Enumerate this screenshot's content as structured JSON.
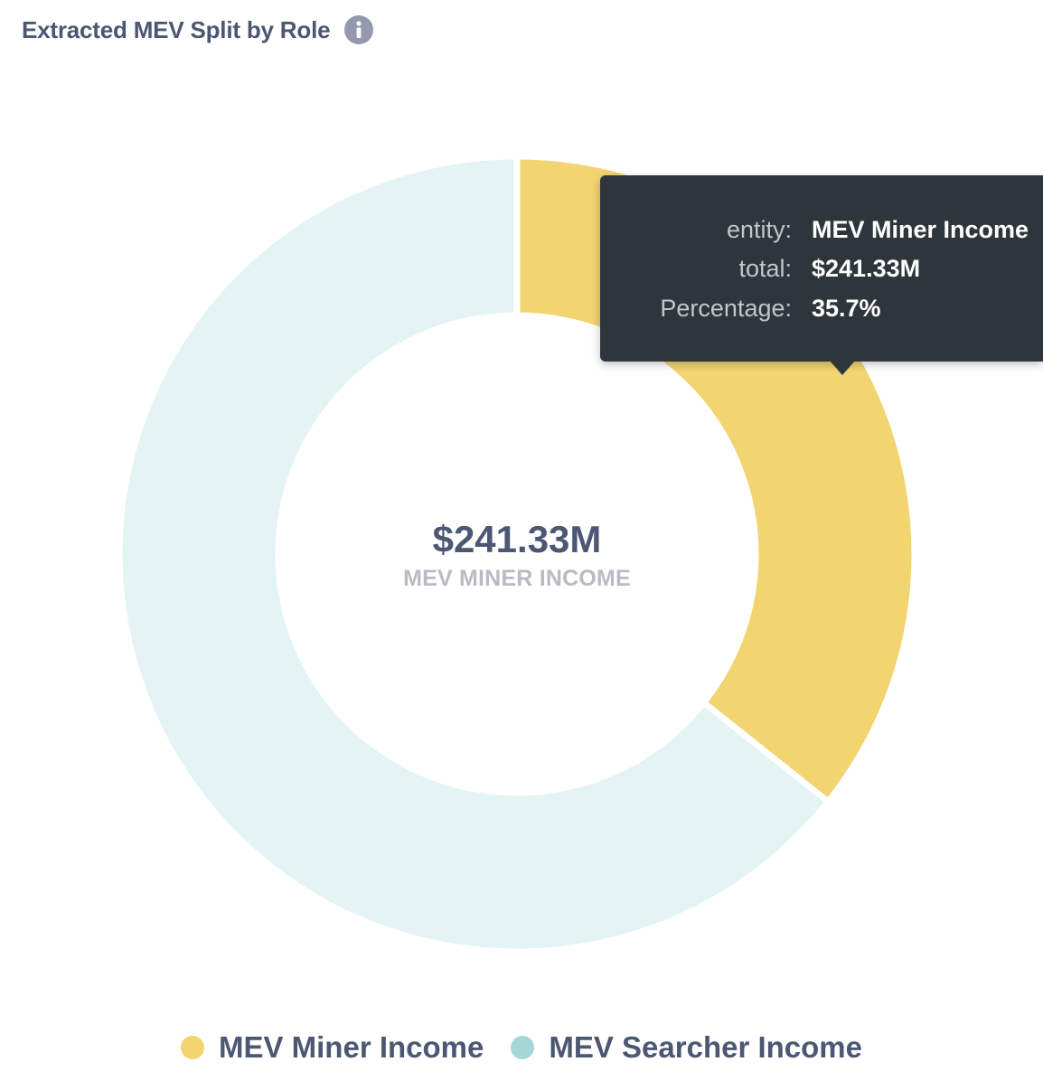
{
  "card": {
    "title": "Extracted MEV Split by Role",
    "info_icon": "info-circle-icon"
  },
  "chart_data": {
    "type": "pie",
    "variant": "donut",
    "series": [
      {
        "name": "MEV Miner Income",
        "value": 241.33,
        "display_value": "$241.33M",
        "percentage": 35.7,
        "color": "#f2d470"
      },
      {
        "name": "MEV Searcher Income",
        "value": 434.66,
        "percentage": 64.3,
        "color": "#a6d7d7"
      }
    ],
    "center": {
      "value": "$241.33M",
      "label": "MEV MINER INCOME"
    },
    "legend_position": "bottom"
  },
  "tooltip": {
    "rows": [
      {
        "key": "entity:",
        "value": "MEV Miner Income"
      },
      {
        "key": "total:",
        "value": "$241.33M"
      },
      {
        "key": "Percentage:",
        "value": "35.7%"
      }
    ]
  },
  "colors": {
    "miner": "#f2d470",
    "searcher_dimmed": "#e4f3f3",
    "searcher_legend": "#a6d7d7",
    "tooltip_bg": "#2e353b",
    "text": "#4c5773"
  }
}
